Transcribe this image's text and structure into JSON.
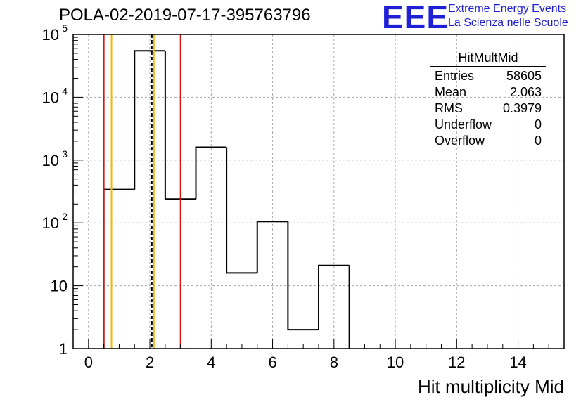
{
  "header": {
    "title": "POLA-02-2019-07-17-395763796",
    "logo_text": "EEE",
    "logo_line1": "Extreme Energy Events",
    "logo_line2": "La Scienza nelle Scuole",
    "brand_color": "#1f1fd6"
  },
  "stats": {
    "title": "HitMultMid",
    "rows": [
      {
        "label": "Entries",
        "value": "58605"
      },
      {
        "label": "Mean",
        "value": "2.063"
      },
      {
        "label": "RMS",
        "value": "0.3979"
      },
      {
        "label": "Underflow",
        "value": "0"
      },
      {
        "label": "Overflow",
        "value": "0"
      }
    ]
  },
  "chart_data": {
    "type": "histogram",
    "title": "POLA-02-2019-07-17-395763796",
    "xlabel": "Hit multiplicity Mid",
    "ylabel": "",
    "xlim": [
      -0.5,
      15.5
    ],
    "ylim": [
      1,
      100000
    ],
    "yscale": "log",
    "grid": true,
    "bin_edges": [
      0.5,
      1.5,
      2.5,
      3.5,
      4.5,
      5.5,
      6.5,
      7.5,
      8.5
    ],
    "counts": [
      340,
      55000,
      240,
      1600,
      16,
      105,
      2,
      21
    ],
    "x_ticks": [
      0,
      2,
      4,
      6,
      8,
      10,
      12,
      14
    ],
    "x_tick_labels": [
      "0",
      "2",
      "4",
      "6",
      "8",
      "10",
      "12",
      "14"
    ],
    "y_ticks": [
      1,
      10,
      100,
      1000,
      10000,
      100000
    ],
    "y_tick_labels": [
      {
        "base": "1",
        "exp": ""
      },
      {
        "base": "10",
        "exp": ""
      },
      {
        "base": "10",
        "exp": "2"
      },
      {
        "base": "10",
        "exp": "3"
      },
      {
        "base": "10",
        "exp": "4"
      },
      {
        "base": "10",
        "exp": "5"
      }
    ],
    "vertical_lines": [
      {
        "name": "lower-red-line",
        "x": 0.5,
        "color": "#e01010",
        "style": "solid"
      },
      {
        "name": "upper-red-line",
        "x": 3.0,
        "color": "#e01010",
        "style": "solid"
      },
      {
        "name": "lower-yellow-line",
        "x": 0.75,
        "color": "#f2b705",
        "style": "solid"
      },
      {
        "name": "upper-yellow-line",
        "x": 2.13,
        "color": "#f2b705",
        "style": "solid"
      },
      {
        "name": "mean-line",
        "x": 2.063,
        "color": "#000000",
        "style": "dashed"
      }
    ]
  }
}
